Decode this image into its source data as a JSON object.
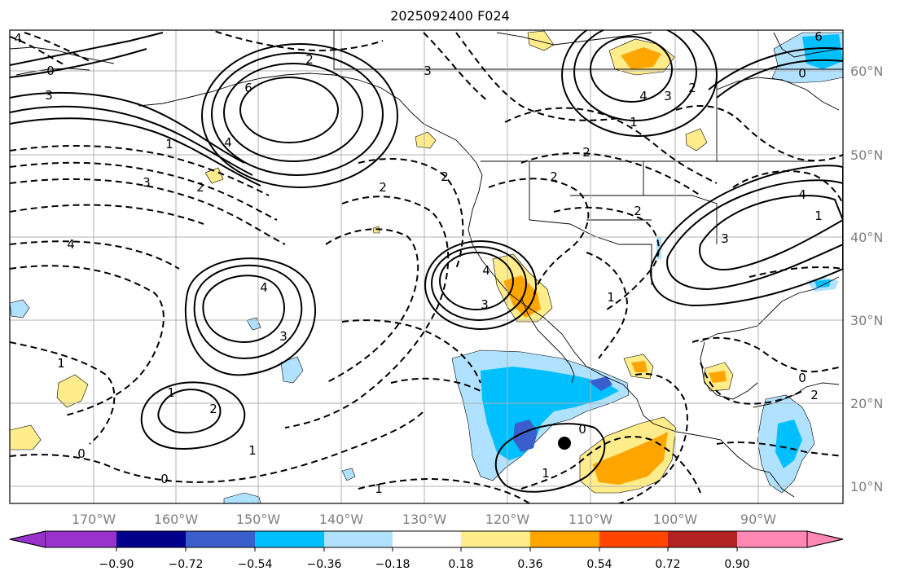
{
  "title": "2025092400 F024",
  "axes": {
    "lon_labels": [
      "170°W",
      "160°W",
      "150°W",
      "140°W",
      "130°W",
      "120°W",
      "110°W",
      "100°W",
      "90°W"
    ],
    "lat_labels": [
      "60°N",
      "50°N",
      "40°N",
      "30°N",
      "20°N",
      "10°N"
    ],
    "gridlines": true,
    "lat_label_side": "right",
    "lon_label_side": "bottom"
  },
  "colorbar": {
    "orientation": "horizontal",
    "extend": "both",
    "tick_labels": [
      "−0.90",
      "−0.72",
      "−0.54",
      "−0.36",
      "−0.18",
      "0.18",
      "0.36",
      "0.54",
      "0.72",
      "0.90"
    ],
    "colors": [
      "#9932CC",
      "#00008B",
      "#3A5FCD",
      "#00BFFF",
      "#B0E2FF",
      "#FFFFFF",
      "#FFEC8B",
      "#FFA500",
      "#FF4500",
      "#B22222",
      "#FF88B4"
    ]
  },
  "contour_labels": [
    "4",
    "0",
    "3",
    "6",
    "1",
    "4",
    "2",
    "3",
    "6",
    "2",
    "4",
    "3",
    "2",
    "1",
    "0",
    "2",
    "3",
    "2",
    "4",
    "4",
    "3",
    "1",
    "1",
    "3",
    "2",
    "4",
    "2",
    "1",
    "2",
    "3",
    "1",
    "4",
    "0",
    "0",
    "1",
    "0",
    "1",
    "0",
    "2",
    "2",
    "1"
  ],
  "marker": "filled-circle"
}
